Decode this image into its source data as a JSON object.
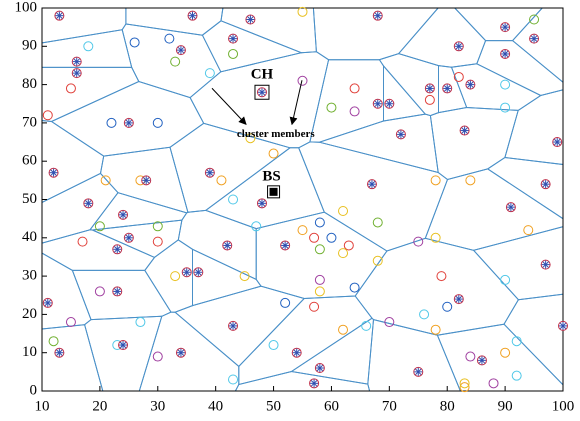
{
  "chart_data": {
    "type": "scatter",
    "xlim": [
      10,
      100
    ],
    "xticks": [
      10,
      20,
      30,
      40,
      50,
      60,
      70,
      80,
      90,
      100
    ],
    "ylim": [
      0,
      100
    ],
    "yticks": [
      0,
      10,
      20,
      30,
      40,
      50,
      60,
      70,
      80,
      90,
      100
    ],
    "voronoi_color": "#4a90c8",
    "cluster_heads": {
      "color": "#c0304a",
      "marker_color": "#3050b0",
      "x": [
        13,
        16,
        16,
        36,
        34,
        43,
        46,
        68,
        82,
        90,
        95,
        90,
        80,
        84,
        77,
        68,
        70,
        72,
        83,
        99,
        25,
        12,
        28,
        39,
        48,
        48,
        67,
        18,
        24,
        25,
        97,
        91,
        23,
        35,
        37,
        52,
        82,
        97,
        23,
        11,
        24,
        13,
        34,
        43,
        54,
        58,
        57,
        75,
        86,
        100,
        42
      ],
      "values": [
        98,
        86,
        83,
        98,
        89,
        92,
        97,
        98,
        90,
        95,
        92,
        88,
        79,
        80,
        79,
        75,
        75,
        67,
        68,
        65,
        70,
        57,
        55,
        57,
        78,
        49,
        54,
        49,
        46,
        40,
        54,
        48,
        37,
        31,
        31,
        38,
        24,
        33,
        26,
        23,
        12,
        10,
        10,
        17,
        10,
        6,
        2,
        5,
        8,
        17,
        38
      ]
    },
    "series": [
      {
        "color": "#e0403a",
        "x": [
          15,
          11,
          17,
          64,
          77,
          82,
          30,
          57,
          57,
          63,
          79
        ],
        "values": [
          79,
          72,
          39,
          79,
          76,
          82,
          39,
          40,
          22,
          38,
          30
        ]
      },
      {
        "color": "#f0a020",
        "x": [
          27,
          21,
          41,
          50,
          55,
          78,
          84,
          94,
          62,
          78,
          90,
          83
        ],
        "values": [
          55,
          55,
          55,
          62,
          42,
          55,
          55,
          42,
          16,
          16,
          10,
          1
        ]
      },
      {
        "color": "#50c8e8",
        "x": [
          18,
          39,
          90,
          90,
          43,
          47,
          27,
          23,
          66,
          76,
          90,
          92,
          92,
          43,
          50
        ],
        "values": [
          90,
          83,
          80,
          74,
          50,
          43,
          18,
          12,
          17,
          20,
          29,
          13,
          4,
          3,
          12
        ]
      },
      {
        "color": "#a040a0",
        "x": [
          55,
          64,
          20,
          15,
          30,
          75,
          84,
          88,
          58,
          70
        ],
        "values": [
          81,
          73,
          26,
          18,
          9,
          39,
          9,
          2,
          29,
          18
        ]
      },
      {
        "color": "#2060c0",
        "x": [
          26,
          32,
          22,
          30,
          52,
          64,
          80,
          58,
          60
        ],
        "values": [
          91,
          92,
          70,
          70,
          23,
          27,
          22,
          44,
          40
        ]
      },
      {
        "color": "#70b030",
        "x": [
          43,
          33,
          60,
          68,
          30,
          20,
          12,
          58,
          95
        ],
        "values": [
          88,
          86,
          74,
          44,
          43,
          43,
          13,
          37,
          97
        ]
      },
      {
        "color": "#e8c020",
        "x": [
          55,
          62,
          58,
          46,
          33,
          45,
          62,
          68,
          78,
          83
        ],
        "values": [
          99,
          47,
          26,
          66,
          30,
          30,
          36,
          34,
          40,
          2
        ]
      }
    ],
    "ch_label": "CH",
    "members_label": "cluster members",
    "bs_label": "BS",
    "ch_point": {
      "x": 48,
      "y": 78
    },
    "bs_point": {
      "x": 50,
      "y": 52
    }
  }
}
